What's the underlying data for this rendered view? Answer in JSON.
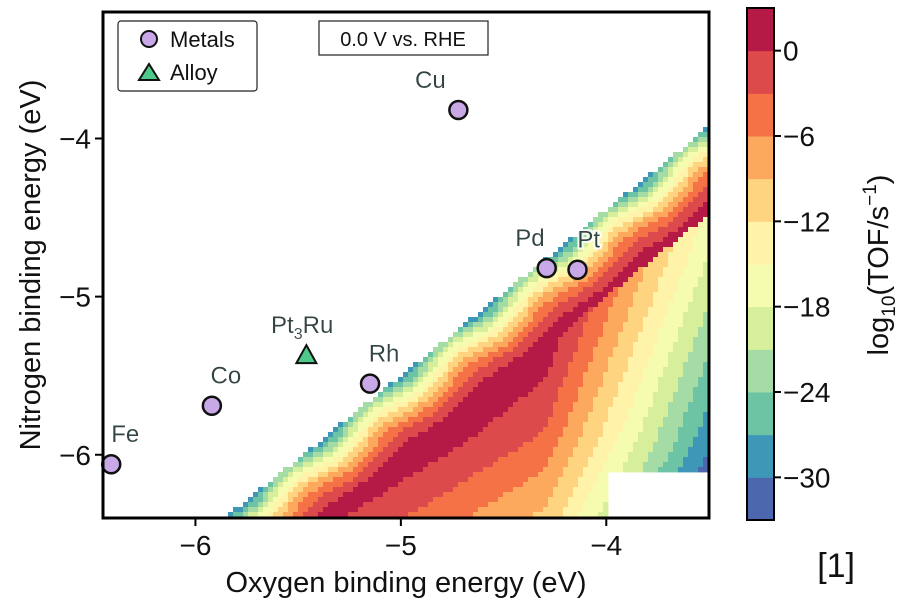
{
  "chart_data": {
    "type": "contour",
    "xlabel": "Oxygen binding energy (eV)",
    "ylabel": "Nitrogen binding energy (eV)",
    "xlim": [
      -6.45,
      -3.5
    ],
    "ylim": [
      -6.4,
      -3.2
    ],
    "x_ticks": [
      -6,
      -5,
      -4
    ],
    "x_tick_labels": [
      "−6",
      "−5",
      "−4"
    ],
    "y_ticks": [
      -6,
      -5,
      -4
    ],
    "y_tick_labels": [
      "−6",
      "−5",
      "−4"
    ],
    "condition_label": "0.0 V vs. RHE",
    "legend": {
      "placement": "top-left",
      "entries": [
        {
          "label": "Metals",
          "marker": "circle",
          "color": "#c9a8e8"
        },
        {
          "label": "Alloy",
          "marker": "triangle",
          "color": "#4fc98a"
        }
      ]
    },
    "colorbar": {
      "label_prefix": "log",
      "label_sub": "10",
      "label_main": "(TOF/s",
      "label_sup": "−1",
      "label_end": ")",
      "range": [
        -33,
        3
      ],
      "level_step": 3,
      "ticks": [
        0,
        -6,
        -12,
        -18,
        -24,
        -30
      ],
      "tick_labels": [
        "0",
        "−6",
        "−12",
        "−18",
        "−24",
        "−30"
      ],
      "colormap": "Spectral",
      "colors": [
        "#5e4fa2",
        "#3288bd",
        "#66c2a5",
        "#abdda4",
        "#e6f598",
        "#ffffbf",
        "#fee08b",
        "#fdae61",
        "#f46d43",
        "#d53e4f",
        "#9e0142"
      ]
    },
    "points": [
      {
        "label": "Cu",
        "x": -4.72,
        "y": -3.82,
        "kind": "Metals",
        "label_dx": -2,
        "label_dy": -1
      },
      {
        "label": "Pd",
        "x": -4.29,
        "y": -4.82,
        "kind": "Metals",
        "label_dx": -1.2,
        "label_dy": -1
      },
      {
        "label": "Pt",
        "x": -4.14,
        "y": -4.83,
        "kind": "Metals",
        "label_dx": 0.8,
        "label_dy": -1
      },
      {
        "label": "Rh",
        "x": -5.15,
        "y": -5.55,
        "kind": "Metals",
        "label_dx": 1,
        "label_dy": -1
      },
      {
        "label": "Co",
        "x": -5.92,
        "y": -5.69,
        "kind": "Metals",
        "label_dx": 1,
        "label_dy": -1
      },
      {
        "label": "Fe",
        "x": -6.41,
        "y": -6.06,
        "kind": "Metals",
        "label_dx": 1,
        "label_dy": -1
      },
      {
        "label": "Pt",
        "label_sub": "3",
        "label_end": "Ru",
        "x": -5.46,
        "y": -5.37,
        "kind": "Alloy",
        "label_dx": -0.3,
        "label_dy": -1
      }
    ]
  },
  "reference_mark": "[1]"
}
